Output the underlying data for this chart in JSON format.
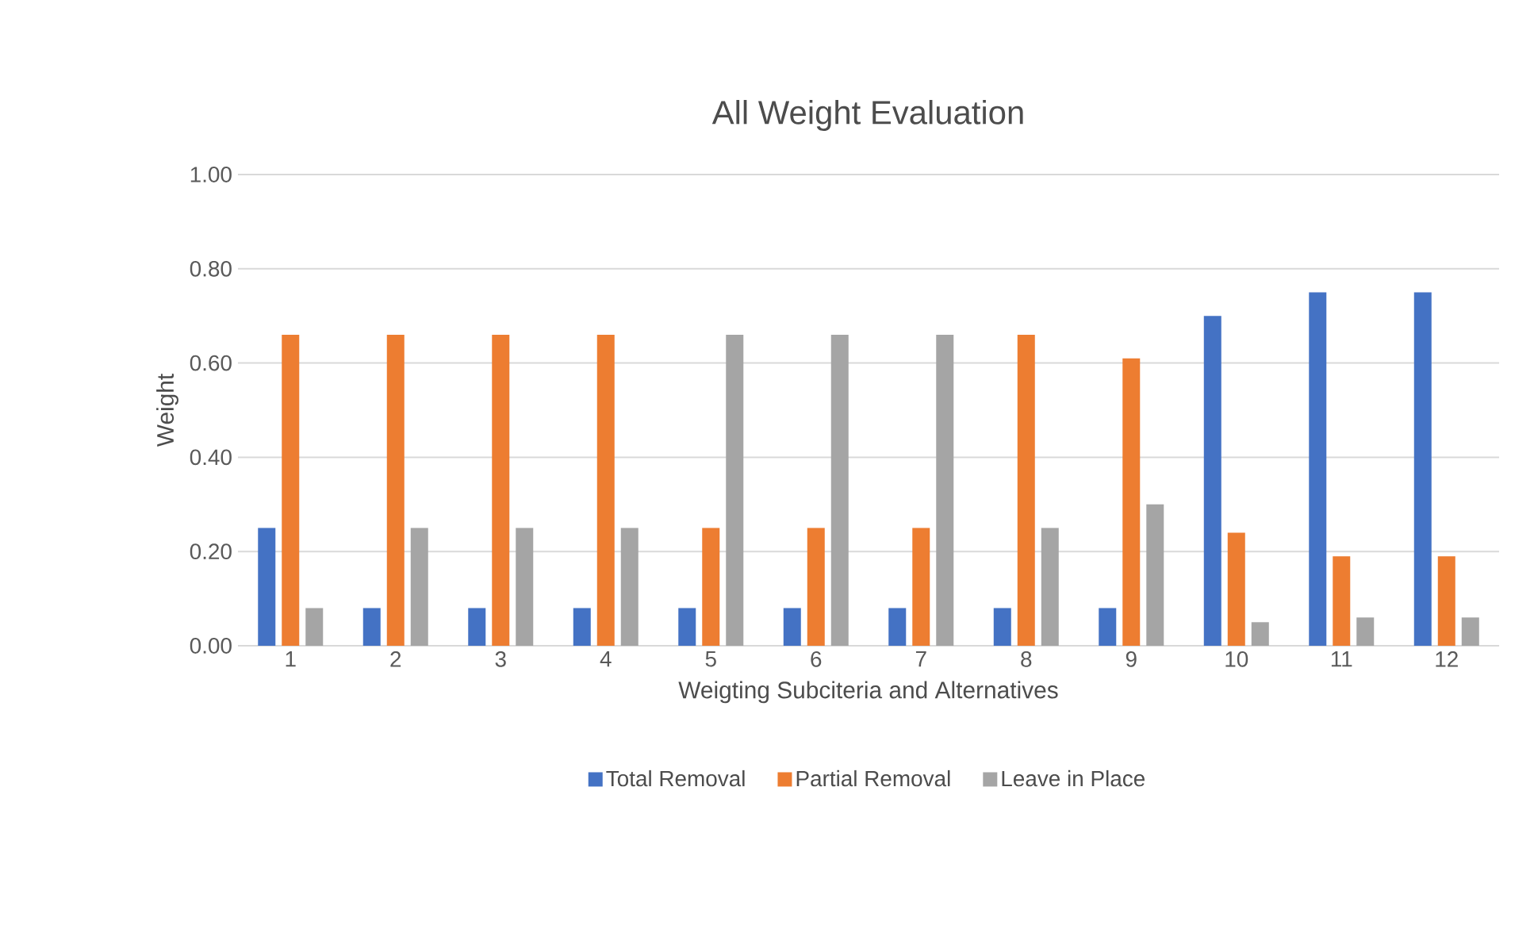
{
  "chart_data": {
    "type": "bar",
    "title": "All Weight Evaluation",
    "xlabel": "Weigting Subciteria and Alternatives",
    "ylabel": "Weight",
    "categories": [
      "1",
      "2",
      "3",
      "4",
      "5",
      "6",
      "7",
      "8",
      "9",
      "10",
      "11",
      "12"
    ],
    "series": [
      {
        "name": "Total Removal",
        "color": "#4472c4",
        "values": [
          0.25,
          0.08,
          0.08,
          0.08,
          0.08,
          0.08,
          0.08,
          0.08,
          0.08,
          0.7,
          0.75,
          0.75
        ]
      },
      {
        "name": "Partial Removal",
        "color": "#ed7d31",
        "values": [
          0.66,
          0.66,
          0.66,
          0.66,
          0.25,
          0.25,
          0.25,
          0.66,
          0.61,
          0.24,
          0.19,
          0.19
        ]
      },
      {
        "name": "Leave in Place",
        "color": "#a5a5a5",
        "values": [
          0.08,
          0.25,
          0.25,
          0.25,
          0.66,
          0.66,
          0.66,
          0.25,
          0.3,
          0.05,
          0.06,
          0.06
        ]
      }
    ],
    "ylim": [
      0,
      1
    ],
    "yticks": [
      {
        "value": 0,
        "label": "0.00"
      },
      {
        "value": 0.2,
        "label": "0.20"
      },
      {
        "value": 0.4,
        "label": "0.40"
      },
      {
        "value": 0.6,
        "label": "0.60"
      },
      {
        "value": 0.8,
        "label": "0.80"
      },
      {
        "value": 1,
        "label": "1.00"
      }
    ],
    "grid": "y",
    "legend": "bottom"
  }
}
